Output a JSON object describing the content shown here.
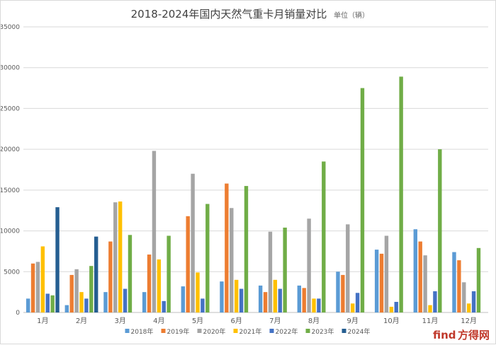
{
  "chart_data": {
    "type": "bar",
    "title": "2018-2024年国内天然气重卡月销量对比",
    "unit_label": "单位（辆）",
    "categories": [
      "1月",
      "2月",
      "3月",
      "4月",
      "5月",
      "6月",
      "7月",
      "8月",
      "9月",
      "10月",
      "11月",
      "12月"
    ],
    "ylim": [
      0,
      35000
    ],
    "yticks": [
      0,
      5000,
      10000,
      15000,
      20000,
      25000,
      30000,
      35000
    ],
    "grid": true,
    "legend_position": "bottom",
    "series": [
      {
        "name": "2018年",
        "color": "#5b9bd5",
        "values": [
          1700,
          900,
          2500,
          2500,
          3200,
          3800,
          3300,
          3300,
          5000,
          7700,
          10200,
          7400
        ]
      },
      {
        "name": "2019年",
        "color": "#ed7d31",
        "values": [
          6000,
          4600,
          8700,
          7100,
          11800,
          15800,
          2500,
          3000,
          4600,
          7200,
          8700,
          6400
        ]
      },
      {
        "name": "2020年",
        "color": "#a5a5a5",
        "values": [
          6200,
          5300,
          13500,
          19800,
          17000,
          12800,
          9900,
          11500,
          10800,
          9400,
          7000,
          3700
        ]
      },
      {
        "name": "2021年",
        "color": "#ffc000",
        "values": [
          8100,
          2500,
          13600,
          6500,
          4900,
          4000,
          4000,
          1700,
          1100,
          700,
          900,
          1100
        ]
      },
      {
        "name": "2022年",
        "color": "#4472c4",
        "values": [
          2300,
          1700,
          2900,
          1400,
          1700,
          2900,
          2900,
          1700,
          2400,
          1300,
          2600,
          2600
        ]
      },
      {
        "name": "2023年",
        "color": "#70ad47",
        "values": [
          2100,
          5700,
          9500,
          9400,
          13300,
          15500,
          10400,
          18500,
          27500,
          28900,
          20000,
          7900
        ]
      },
      {
        "name": "2024年",
        "color": "#255e91",
        "values": [
          12900,
          9300,
          null,
          null,
          null,
          null,
          null,
          null,
          null,
          null,
          null,
          null
        ]
      }
    ]
  },
  "watermark": {
    "text": "方得网",
    "logo_letters": "find",
    "color": "#c0392b"
  }
}
